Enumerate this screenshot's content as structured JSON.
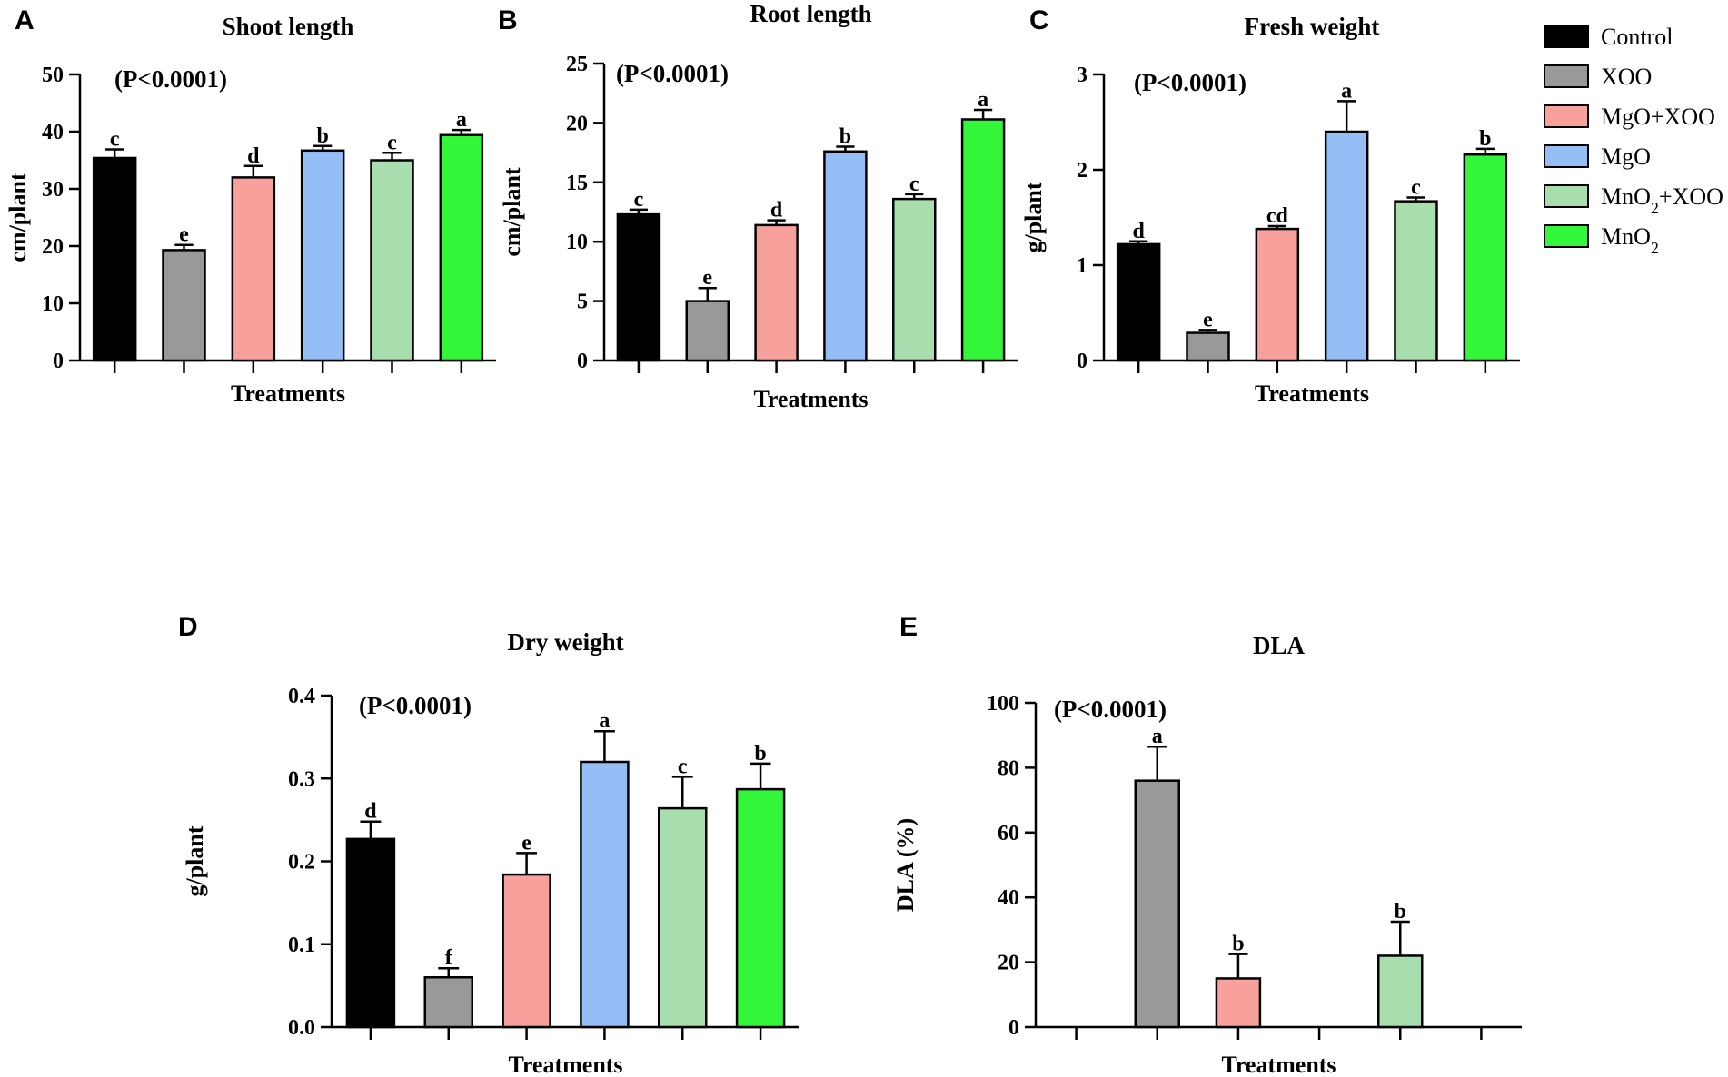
{
  "legend": {
    "entries": [
      {
        "label": "Control",
        "color": "#000000"
      },
      {
        "label": "XOO",
        "color": "#999999"
      },
      {
        "label": "MgO+XOO",
        "color": "#F8A09C"
      },
      {
        "label": "MgO",
        "color": "#94BEF5"
      },
      {
        "label": "MnO2+XOO",
        "color": "#A8DEAE",
        "base": "MnO",
        "sub": "2",
        "tail": "+XOO"
      },
      {
        "label": "MnO2",
        "color": "#33F53A",
        "base": "MnO",
        "sub": "2",
        "tail": ""
      }
    ]
  },
  "chart_data": [
    {
      "panel": "A",
      "type": "bar",
      "title": "Shoot length",
      "annotation": "(P<0.0001)",
      "xlabel": "Treatments",
      "ylabel": "cm/plant",
      "ylim": [
        0,
        50
      ],
      "yticks": [
        "0",
        "10",
        "20",
        "30",
        "40",
        "50"
      ],
      "categories": [
        "Control",
        "XOO",
        "MgO+XOO",
        "MgO",
        "MnO2+XOO",
        "MnO2"
      ],
      "values": [
        35.4,
        19.3,
        32.0,
        36.7,
        35.0,
        39.4
      ],
      "errors": [
        1.5,
        0.9,
        2.0,
        0.8,
        1.3,
        0.9
      ],
      "letters": [
        "c",
        "e",
        "d",
        "b",
        "c",
        "a"
      ]
    },
    {
      "panel": "B",
      "type": "bar",
      "title": "Root length",
      "annotation": "(P<0.0001)",
      "xlabel": "Treatments",
      "ylabel": "cm/plant",
      "ylim": [
        0,
        25
      ],
      "yticks": [
        "0",
        "5",
        "10",
        "15",
        "20",
        "25"
      ],
      "categories": [
        "Control",
        "XOO",
        "MgO+XOO",
        "MgO",
        "MnO2+XOO",
        "MnO2"
      ],
      "values": [
        12.3,
        5.0,
        11.4,
        17.6,
        13.6,
        20.3
      ],
      "errors": [
        0.4,
        1.1,
        0.4,
        0.4,
        0.4,
        0.8
      ],
      "letters": [
        "c",
        "e",
        "d",
        "b",
        "c",
        "a"
      ]
    },
    {
      "panel": "C",
      "type": "bar",
      "title": "Fresh weight",
      "annotation": "(P<0.0001)",
      "xlabel": "Treatments",
      "ylabel": "g/plant",
      "ylim": [
        0,
        3
      ],
      "yticks": [
        "0",
        "1",
        "2",
        "3"
      ],
      "categories": [
        "Control",
        "XOO",
        "MgO+XOO",
        "MgO",
        "MnO2+XOO",
        "MnO2"
      ],
      "values": [
        1.22,
        0.29,
        1.38,
        2.4,
        1.67,
        2.16
      ],
      "errors": [
        0.03,
        0.03,
        0.03,
        0.32,
        0.04,
        0.06
      ],
      "letters": [
        "d",
        "e",
        "cd",
        "a",
        "c",
        "b"
      ]
    },
    {
      "panel": "D",
      "type": "bar",
      "title": "Dry weight",
      "annotation": "(P<0.0001)",
      "xlabel": "Treatments",
      "ylabel": "g/plant",
      "ylim": [
        0,
        0.4
      ],
      "yticks": [
        "0.0",
        "0.1",
        "0.2",
        "0.3",
        "0.4"
      ],
      "categories": [
        "Control",
        "XOO",
        "MgO+XOO",
        "MgO",
        "MnO2+XOO",
        "MnO2"
      ],
      "values": [
        0.227,
        0.06,
        0.184,
        0.32,
        0.264,
        0.287
      ],
      "errors": [
        0.021,
        0.011,
        0.026,
        0.037,
        0.038,
        0.031
      ],
      "letters": [
        "d",
        "f",
        "e",
        "a",
        "c",
        "b"
      ]
    },
    {
      "panel": "E",
      "type": "bar",
      "title": "DLA",
      "annotation": "(P<0.0001)",
      "xlabel": "Treatments",
      "ylabel": "DLA (%)",
      "ylim": [
        0,
        100
      ],
      "yticks": [
        "0",
        "20",
        "40",
        "60",
        "80",
        "100"
      ],
      "categories": [
        "Control",
        "XOO",
        "MgO+XOO",
        "MgO",
        "MnO2+XOO",
        "MnO2"
      ],
      "values": [
        0,
        76,
        15,
        0,
        22,
        0
      ],
      "errors": [
        0,
        10.5,
        7.5,
        0,
        10.5,
        0
      ],
      "letters": [
        "",
        "a",
        "b",
        "",
        "b",
        ""
      ]
    }
  ]
}
